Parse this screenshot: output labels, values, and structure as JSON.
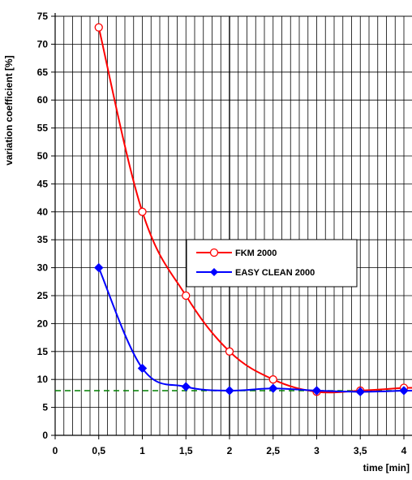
{
  "chart_data": {
    "type": "line",
    "ylabel": "variation coefficient [%]",
    "xlabel": "time [min]",
    "xlim": [
      0,
      4
    ],
    "ylim": [
      0,
      75
    ],
    "x_ticks": [
      {
        "v": 0,
        "label": "0"
      },
      {
        "v": 0.5,
        "label": "0,5"
      },
      {
        "v": 1,
        "label": "1"
      },
      {
        "v": 1.5,
        "label": "1,5"
      },
      {
        "v": 2,
        "label": "2"
      },
      {
        "v": 2.5,
        "label": "2,5"
      },
      {
        "v": 3,
        "label": "3"
      },
      {
        "v": 3.5,
        "label": "3,5"
      },
      {
        "v": 4,
        "label": "4"
      }
    ],
    "y_ticks": [
      {
        "v": 0,
        "label": "0"
      },
      {
        "v": 5,
        "label": "5"
      },
      {
        "v": 10,
        "label": "10"
      },
      {
        "v": 15,
        "label": "15"
      },
      {
        "v": 20,
        "label": "20"
      },
      {
        "v": 25,
        "label": "25"
      },
      {
        "v": 30,
        "label": "30"
      },
      {
        "v": 35,
        "label": "35"
      },
      {
        "v": 40,
        "label": "40"
      },
      {
        "v": 45,
        "label": "45"
      },
      {
        "v": 50,
        "label": "50"
      },
      {
        "v": 55,
        "label": "55"
      },
      {
        "v": 60,
        "label": "60"
      },
      {
        "v": 65,
        "label": "65"
      },
      {
        "v": 70,
        "label": "70"
      },
      {
        "v": 75,
        "label": "75"
      }
    ],
    "grid": true,
    "legend_position": "center-right",
    "reference_line": {
      "y": 8,
      "color": "#008000",
      "style": "dashed"
    },
    "series": [
      {
        "name": "FKM 2000",
        "color": "#ff0000",
        "marker": "open-circle",
        "x": [
          0.5,
          1,
          1.5,
          2,
          2.5,
          3,
          3.5,
          4
        ],
        "y": [
          73,
          40,
          25,
          15,
          10,
          7.8,
          8,
          8.5
        ]
      },
      {
        "name": "EASY CLEAN 2000",
        "color": "#0000ff",
        "marker": "filled-diamond",
        "x": [
          0.5,
          1,
          1.5,
          2,
          2.5,
          3,
          3.5,
          4
        ],
        "y": [
          30,
          12,
          8.7,
          8,
          8.4,
          8,
          7.8,
          8
        ]
      }
    ]
  }
}
